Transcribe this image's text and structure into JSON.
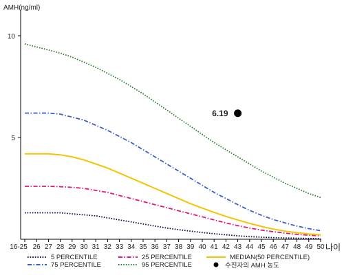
{
  "chart_data": {
    "type": "line",
    "ylabel": "AMH(ng/ml)",
    "xlabel": "나이",
    "categories": [
      "16-25",
      "26",
      "27",
      "28",
      "29",
      "30",
      "31",
      "32",
      "33",
      "34",
      "35",
      "36",
      "37",
      "38",
      "39",
      "40",
      "41",
      "42",
      "43",
      "44",
      "45",
      "46",
      "47",
      "48",
      "49",
      "50"
    ],
    "yticks": [
      5,
      10
    ],
    "ylim": [
      0,
      11
    ],
    "grid": false,
    "series": [
      {
        "name": "5 PERCENTILE",
        "color": "#0a0a50",
        "style": "dotted",
        "values": [
          1.3,
          1.3,
          1.3,
          1.3,
          1.25,
          1.2,
          1.15,
          1.05,
          0.95,
          0.85,
          0.75,
          0.65,
          0.55,
          0.47,
          0.4,
          0.33,
          0.27,
          0.22,
          0.17,
          0.13,
          0.1,
          0.08,
          0.06,
          0.05,
          0.04,
          0.03
        ]
      },
      {
        "name": "25 PERCENTILE",
        "color": "#e0157d",
        "style": "dashdot",
        "values": [
          2.6,
          2.6,
          2.6,
          2.58,
          2.55,
          2.5,
          2.4,
          2.3,
          2.15,
          2.0,
          1.85,
          1.7,
          1.55,
          1.4,
          1.25,
          1.1,
          0.95,
          0.8,
          0.67,
          0.55,
          0.45,
          0.37,
          0.3,
          0.24,
          0.2,
          0.17
        ]
      },
      {
        "name": "MEDIAN(50 PERCENTILE)",
        "color": "#f5c400",
        "style": "solid",
        "values": [
          4.2,
          4.2,
          4.2,
          4.15,
          4.05,
          3.9,
          3.7,
          3.5,
          3.25,
          3.0,
          2.75,
          2.5,
          2.25,
          2.0,
          1.75,
          1.53,
          1.32,
          1.12,
          0.95,
          0.78,
          0.63,
          0.5,
          0.4,
          0.32,
          0.26,
          0.22
        ]
      },
      {
        "name": "75 PERCENTILE",
        "color": "#3a5fcd",
        "style": "dashdot",
        "values": [
          6.2,
          6.2,
          6.2,
          6.15,
          6.0,
          5.85,
          5.6,
          5.35,
          5.05,
          4.75,
          4.4,
          4.05,
          3.7,
          3.35,
          3.0,
          2.65,
          2.3,
          2.0,
          1.7,
          1.42,
          1.18,
          0.97,
          0.8,
          0.65,
          0.52,
          0.42
        ]
      },
      {
        "name": "95 PERCENTILE",
        "color": "#2e7d32",
        "style": "dotted",
        "values": [
          9.6,
          9.45,
          9.3,
          9.15,
          8.95,
          8.7,
          8.45,
          8.15,
          7.85,
          7.5,
          7.15,
          6.75,
          6.35,
          5.95,
          5.55,
          5.15,
          4.75,
          4.4,
          4.05,
          3.7,
          3.35,
          3.05,
          2.75,
          2.5,
          2.25,
          2.05
        ]
      }
    ],
    "marker": {
      "name": "수진자의 AMH 농도",
      "x": "43",
      "y": 6.19,
      "label": "6.19",
      "color": "#000000"
    }
  }
}
